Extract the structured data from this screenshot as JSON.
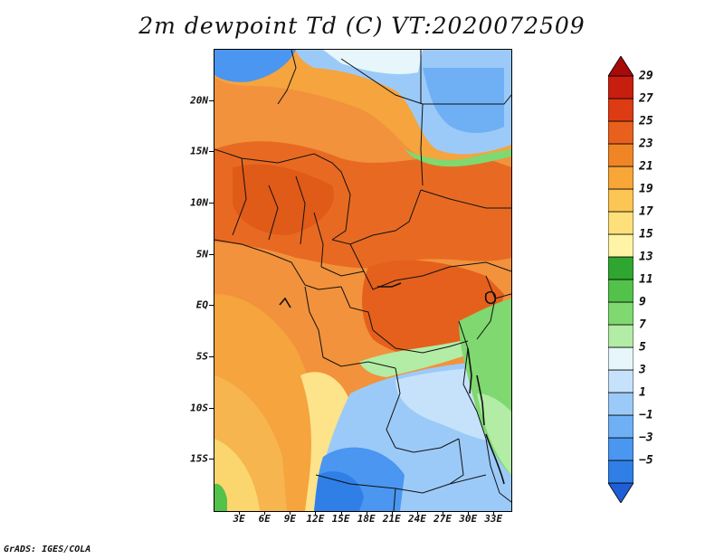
{
  "title": "2m dewpoint Td (C) VT:2020072509",
  "credit": "GrADS: IGES/COLA",
  "map": {
    "projection": "lat-lon",
    "lon_range": [
      0,
      35
    ],
    "lat_range": [
      -20,
      25
    ],
    "variable": "2m dewpoint temperature",
    "units": "C",
    "valid_time": "2020072509",
    "lat_ticks": [
      {
        "value": 20,
        "label": "20N"
      },
      {
        "value": 15,
        "label": "15N"
      },
      {
        "value": 10,
        "label": "10N"
      },
      {
        "value": 5,
        "label": "5N"
      },
      {
        "value": 0,
        "label": "EQ"
      },
      {
        "value": -5,
        "label": "5S"
      },
      {
        "value": -10,
        "label": "10S"
      },
      {
        "value": -15,
        "label": "15S"
      }
    ],
    "lon_ticks": [
      {
        "value": 3,
        "label": "3E"
      },
      {
        "value": 6,
        "label": "6E"
      },
      {
        "value": 9,
        "label": "9E"
      },
      {
        "value": 12,
        "label": "12E"
      },
      {
        "value": 15,
        "label": "15E"
      },
      {
        "value": 18,
        "label": "18E"
      },
      {
        "value": 21,
        "label": "21E"
      },
      {
        "value": 24,
        "label": "24E"
      },
      {
        "value": 27,
        "label": "27E"
      },
      {
        "value": 30,
        "label": "30E"
      },
      {
        "value": 33,
        "label": "33E"
      }
    ]
  },
  "colorbar": {
    "labels": [
      "29",
      "27",
      "25",
      "23",
      "21",
      "19",
      "17",
      "15",
      "13",
      "11",
      "9",
      "7",
      "5",
      "3",
      "1",
      "−1",
      "−3",
      "−5"
    ],
    "colors": [
      "#1f5fd6",
      "#2f7fe6",
      "#4a96f0",
      "#6fb0f5",
      "#9ccaf8",
      "#c6e2fb",
      "#e6f6fb",
      "#b2eca5",
      "#7fd870",
      "#52c24a",
      "#2fa630",
      "#fff3a6",
      "#fde07a",
      "#fcc654",
      "#f7a637",
      "#f08526",
      "#e8611c",
      "#dc3b14",
      "#c81e10",
      "#a80a0a"
    ]
  }
}
